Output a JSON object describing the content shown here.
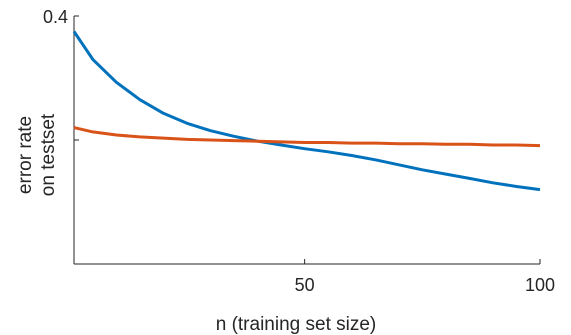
{
  "chart_data": {
    "type": "line",
    "title": "",
    "xlabel": "n (training set size)",
    "ylabel_lines": [
      "error rate",
      "on testset"
    ],
    "xlim": [
      1,
      100
    ],
    "ylim": [
      0,
      0.4
    ],
    "x_ticks": [
      {
        "value": 50,
        "label": "50"
      },
      {
        "value": 100,
        "label": "100"
      }
    ],
    "y_ticks": [
      {
        "value": 0.4,
        "label": "0.4"
      },
      {
        "value": 0.2,
        "label": ""
      }
    ],
    "grid": false,
    "legend": "none",
    "series": [
      {
        "color": "#0072BD",
        "x": [
          1,
          5,
          10,
          15,
          20,
          25,
          30,
          35,
          40,
          45,
          50,
          55,
          60,
          65,
          70,
          75,
          80,
          85,
          90,
          95,
          100
        ],
        "y": [
          0.375,
          0.33,
          0.293,
          0.265,
          0.243,
          0.227,
          0.215,
          0.206,
          0.198,
          0.192,
          0.186,
          0.181,
          0.175,
          0.168,
          0.16,
          0.152,
          0.145,
          0.138,
          0.131,
          0.125,
          0.12
        ]
      },
      {
        "color": "#D95319",
        "x": [
          1,
          5,
          10,
          15,
          20,
          25,
          30,
          35,
          40,
          45,
          50,
          55,
          60,
          65,
          70,
          75,
          80,
          85,
          90,
          95,
          100
        ],
        "y": [
          0.22,
          0.213,
          0.208,
          0.205,
          0.203,
          0.201,
          0.2,
          0.199,
          0.198,
          0.197,
          0.196,
          0.196,
          0.195,
          0.195,
          0.194,
          0.194,
          0.193,
          0.193,
          0.192,
          0.192,
          0.191
        ]
      }
    ]
  }
}
